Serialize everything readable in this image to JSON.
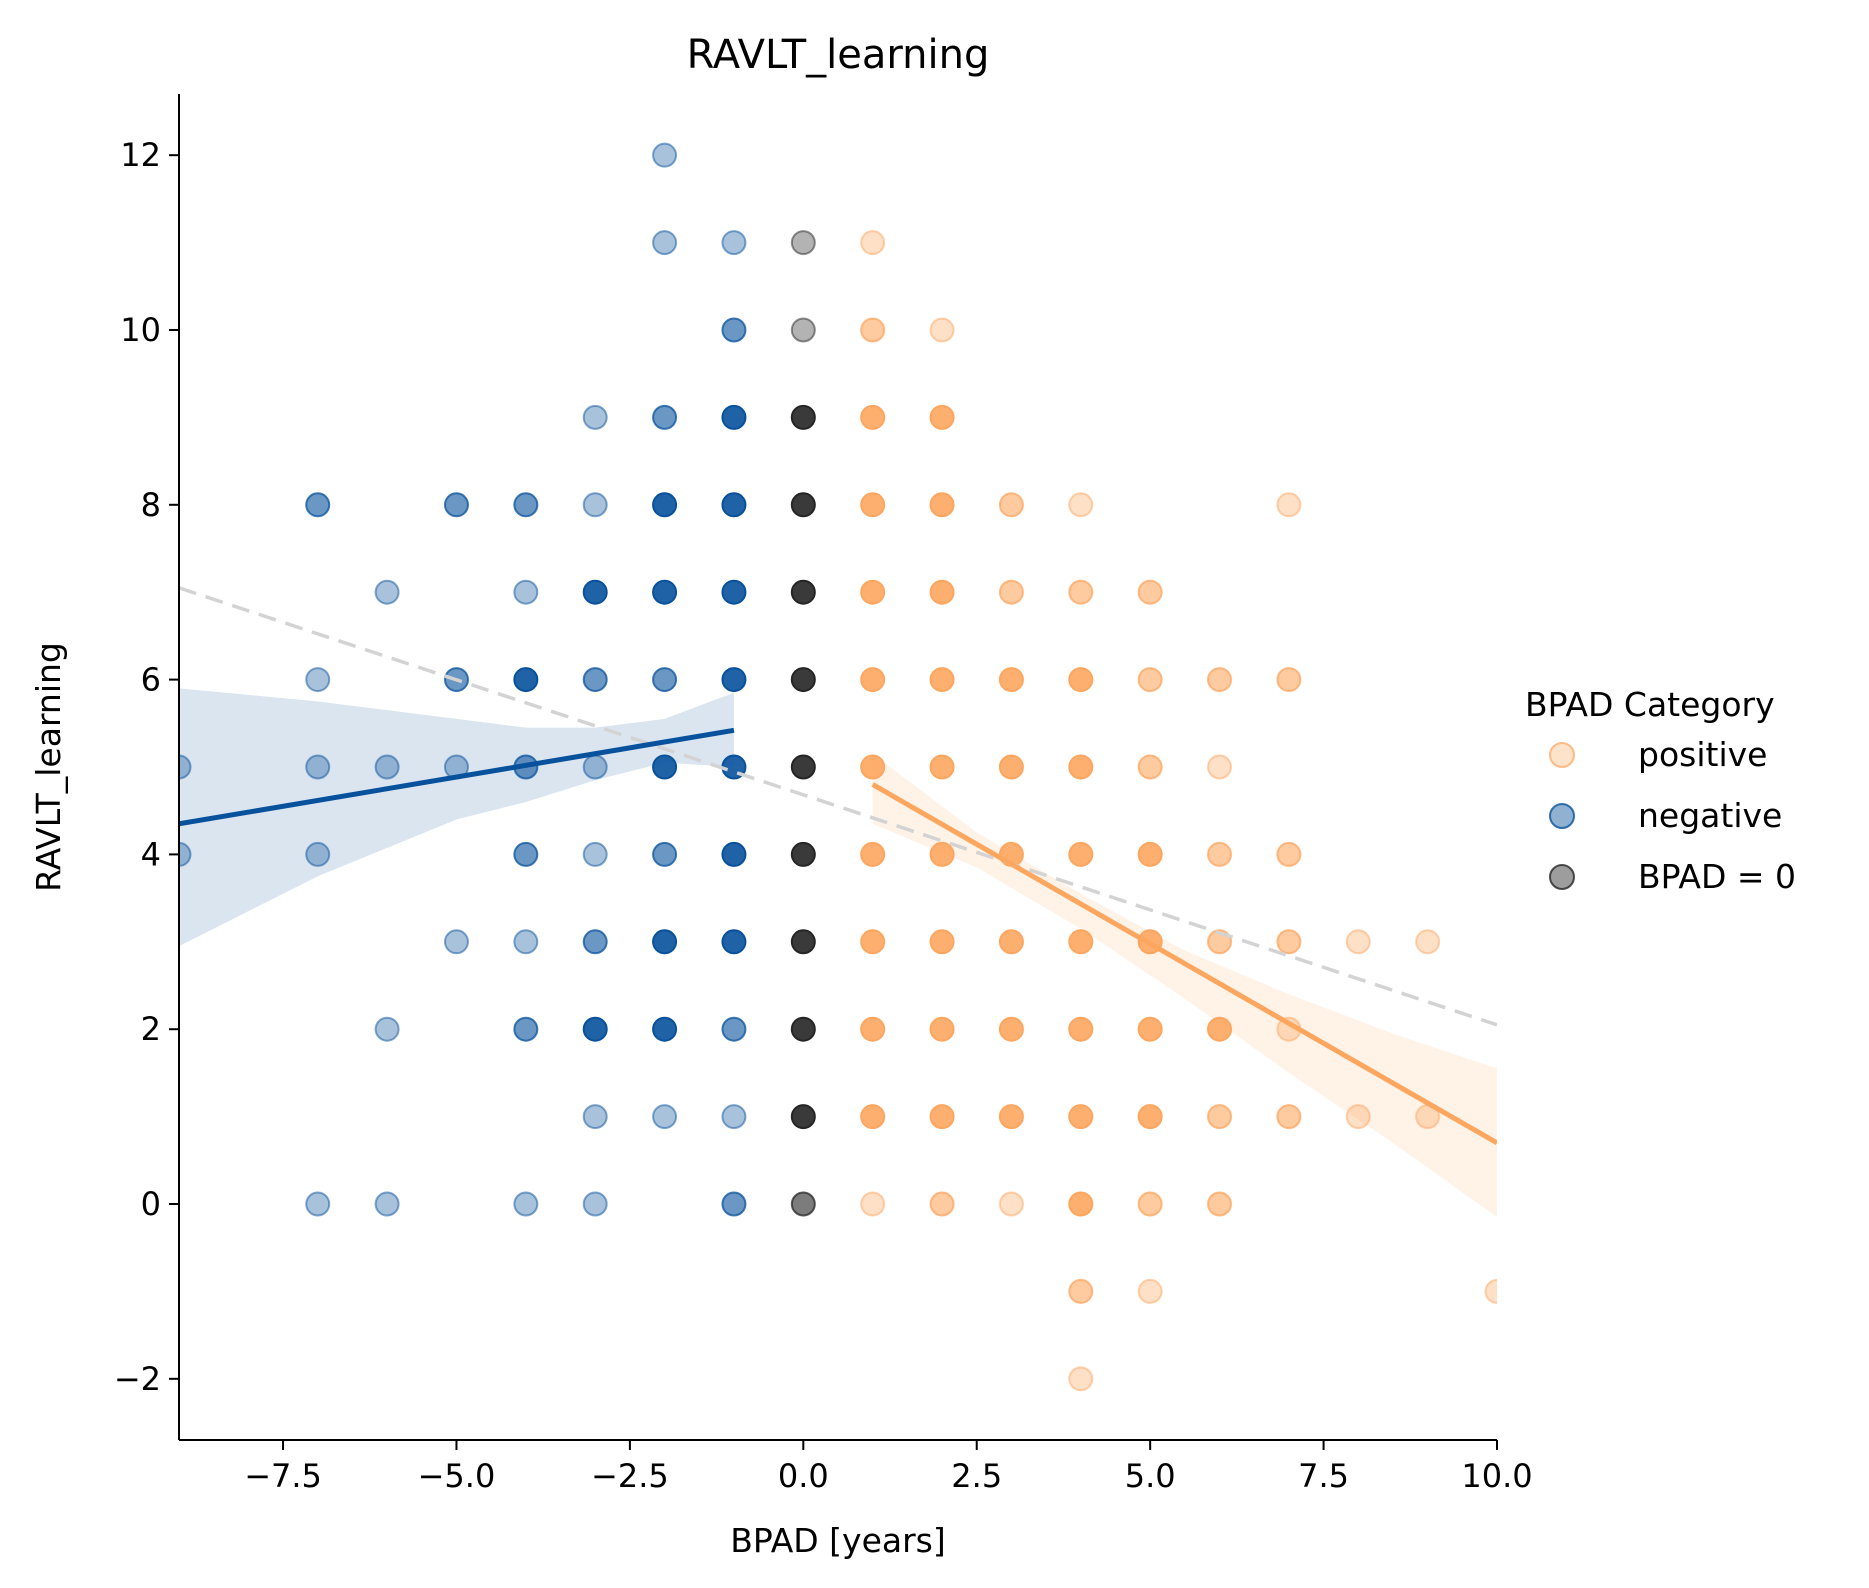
{
  "chart_data": {
    "type": "scatter",
    "title": "RAVLT_learning",
    "xlabel": "BPAD [years]",
    "ylabel": "RAVLT_learning",
    "xlim": [
      -9,
      10
    ],
    "ylim": [
      -2.7,
      12.7
    ],
    "xticks": [
      -7.5,
      -5.0,
      -2.5,
      0.0,
      2.5,
      5.0,
      7.5,
      10.0
    ],
    "xtick_labels": [
      "−7.5",
      "−5.0",
      "−2.5",
      "0.0",
      "2.5",
      "5.0",
      "7.5",
      "10.0"
    ],
    "yticks": [
      -2,
      0,
      2,
      4,
      6,
      8,
      10,
      12
    ],
    "ytick_labels": [
      "−2",
      "0",
      "2",
      "4",
      "6",
      "8",
      "10",
      "12"
    ],
    "legend": {
      "title": "BPAD Category",
      "position": "right",
      "entries": [
        {
          "label": "positive",
          "color": "#fdae6b"
        },
        {
          "label": "negative",
          "color": "#08519c"
        },
        {
          "label": "BPAD = 0",
          "color": "#252525"
        }
      ]
    },
    "series": [
      {
        "name": "positive",
        "color": "#fda65f",
        "points": [
          {
            "x": 1,
            "y": 11,
            "n": 1
          },
          {
            "x": 1,
            "y": 10,
            "n": 2
          },
          {
            "x": 1,
            "y": 9,
            "n": 3
          },
          {
            "x": 1,
            "y": 8,
            "n": 3
          },
          {
            "x": 1,
            "y": 7,
            "n": 3
          },
          {
            "x": 1,
            "y": 6,
            "n": 3
          },
          {
            "x": 1,
            "y": 5,
            "n": 3
          },
          {
            "x": 1,
            "y": 4,
            "n": 3
          },
          {
            "x": 1,
            "y": 3,
            "n": 3
          },
          {
            "x": 1,
            "y": 2,
            "n": 3
          },
          {
            "x": 1,
            "y": 1,
            "n": 3
          },
          {
            "x": 1,
            "y": 0,
            "n": 1
          },
          {
            "x": 2,
            "y": 10,
            "n": 1
          },
          {
            "x": 2,
            "y": 9,
            "n": 3
          },
          {
            "x": 2,
            "y": 8,
            "n": 3
          },
          {
            "x": 2,
            "y": 7,
            "n": 3
          },
          {
            "x": 2,
            "y": 6,
            "n": 3
          },
          {
            "x": 2,
            "y": 5,
            "n": 3
          },
          {
            "x": 2,
            "y": 4,
            "n": 3
          },
          {
            "x": 2,
            "y": 3,
            "n": 3
          },
          {
            "x": 2,
            "y": 2,
            "n": 3
          },
          {
            "x": 2,
            "y": 1,
            "n": 3
          },
          {
            "x": 2,
            "y": 0,
            "n": 2
          },
          {
            "x": 3,
            "y": 8,
            "n": 2
          },
          {
            "x": 3,
            "y": 7,
            "n": 2
          },
          {
            "x": 3,
            "y": 6,
            "n": 3
          },
          {
            "x": 3,
            "y": 5,
            "n": 3
          },
          {
            "x": 3,
            "y": 4,
            "n": 3
          },
          {
            "x": 3,
            "y": 3,
            "n": 3
          },
          {
            "x": 3,
            "y": 2,
            "n": 3
          },
          {
            "x": 3,
            "y": 1,
            "n": 3
          },
          {
            "x": 3,
            "y": 0,
            "n": 1
          },
          {
            "x": 4,
            "y": 8,
            "n": 1
          },
          {
            "x": 4,
            "y": 7,
            "n": 2
          },
          {
            "x": 4,
            "y": 6,
            "n": 3
          },
          {
            "x": 4,
            "y": 5,
            "n": 3
          },
          {
            "x": 4,
            "y": 4,
            "n": 3
          },
          {
            "x": 4,
            "y": 3,
            "n": 3
          },
          {
            "x": 4,
            "y": 2,
            "n": 3
          },
          {
            "x": 4,
            "y": 1,
            "n": 3
          },
          {
            "x": 4,
            "y": 0,
            "n": 3
          },
          {
            "x": 4,
            "y": -1,
            "n": 2
          },
          {
            "x": 4,
            "y": -2,
            "n": 1
          },
          {
            "x": 5,
            "y": 7,
            "n": 2
          },
          {
            "x": 5,
            "y": 6,
            "n": 2
          },
          {
            "x": 5,
            "y": 5,
            "n": 2
          },
          {
            "x": 5,
            "y": 4,
            "n": 3
          },
          {
            "x": 5,
            "y": 3,
            "n": 3
          },
          {
            "x": 5,
            "y": 2,
            "n": 3
          },
          {
            "x": 5,
            "y": 1,
            "n": 3
          },
          {
            "x": 5,
            "y": 0,
            "n": 2
          },
          {
            "x": 5,
            "y": -1,
            "n": 1
          },
          {
            "x": 6,
            "y": 6,
            "n": 2
          },
          {
            "x": 6,
            "y": 5,
            "n": 1
          },
          {
            "x": 6,
            "y": 4,
            "n": 2
          },
          {
            "x": 6,
            "y": 3,
            "n": 2
          },
          {
            "x": 6,
            "y": 2,
            "n": 3
          },
          {
            "x": 6,
            "y": 1,
            "n": 2
          },
          {
            "x": 6,
            "y": 0,
            "n": 2
          },
          {
            "x": 7,
            "y": 8,
            "n": 1
          },
          {
            "x": 7,
            "y": 6,
            "n": 2
          },
          {
            "x": 7,
            "y": 4,
            "n": 2
          },
          {
            "x": 7,
            "y": 3,
            "n": 2
          },
          {
            "x": 7,
            "y": 2,
            "n": 1
          },
          {
            "x": 7,
            "y": 1,
            "n": 2
          },
          {
            "x": 8,
            "y": 3,
            "n": 1
          },
          {
            "x": 8,
            "y": 1,
            "n": 1
          },
          {
            "x": 9,
            "y": 3,
            "n": 1
          },
          {
            "x": 9,
            "y": 1,
            "n": 1
          },
          {
            "x": 10,
            "y": -1,
            "n": 1
          }
        ],
        "fit": {
          "x0": 1,
          "y0": 4.8,
          "x1": 10,
          "y1": 0.7
        },
        "ci_band": [
          {
            "x": 1,
            "lo": 4.35,
            "hi": 5.15
          },
          {
            "x": 2.5,
            "lo": 3.85,
            "hi": 4.25
          },
          {
            "x": 4,
            "lo": 3.15,
            "hi": 3.55
          },
          {
            "x": 5.5,
            "lo": 2.35,
            "hi": 2.9
          },
          {
            "x": 7,
            "lo": 1.5,
            "hi": 2.4
          },
          {
            "x": 8.5,
            "lo": 0.7,
            "hi": 1.95
          },
          {
            "x": 10,
            "lo": -0.15,
            "hi": 1.55
          }
        ]
      },
      {
        "name": "negative",
        "color": "#08519c",
        "points": [
          {
            "x": -2,
            "y": 12,
            "n": 1
          },
          {
            "x": -2,
            "y": 11,
            "n": 1
          },
          {
            "x": -2,
            "y": 9,
            "n": 2
          },
          {
            "x": -2,
            "y": 8,
            "n": 3
          },
          {
            "x": -2,
            "y": 7,
            "n": 3
          },
          {
            "x": -2,
            "y": 6,
            "n": 2
          },
          {
            "x": -2,
            "y": 5,
            "n": 3
          },
          {
            "x": -2,
            "y": 4,
            "n": 2
          },
          {
            "x": -2,
            "y": 3,
            "n": 3
          },
          {
            "x": -2,
            "y": 2,
            "n": 3
          },
          {
            "x": -2,
            "y": 1,
            "n": 1
          },
          {
            "x": -1,
            "y": 11,
            "n": 1
          },
          {
            "x": -1,
            "y": 10,
            "n": 2
          },
          {
            "x": -1,
            "y": 9,
            "n": 3
          },
          {
            "x": -1,
            "y": 8,
            "n": 3
          },
          {
            "x": -1,
            "y": 7,
            "n": 3
          },
          {
            "x": -1,
            "y": 6,
            "n": 3
          },
          {
            "x": -1,
            "y": 5,
            "n": 3
          },
          {
            "x": -1,
            "y": 4,
            "n": 3
          },
          {
            "x": -1,
            "y": 3,
            "n": 3
          },
          {
            "x": -1,
            "y": 2,
            "n": 2
          },
          {
            "x": -1,
            "y": 1,
            "n": 1
          },
          {
            "x": -1,
            "y": 0,
            "n": 2
          },
          {
            "x": -3,
            "y": 9,
            "n": 1
          },
          {
            "x": -3,
            "y": 8,
            "n": 1
          },
          {
            "x": -3,
            "y": 7,
            "n": 3
          },
          {
            "x": -3,
            "y": 6,
            "n": 2
          },
          {
            "x": -3,
            "y": 5,
            "n": 1
          },
          {
            "x": -3,
            "y": 4,
            "n": 1
          },
          {
            "x": -3,
            "y": 3,
            "n": 2
          },
          {
            "x": -3,
            "y": 2,
            "n": 3
          },
          {
            "x": -3,
            "y": 1,
            "n": 1
          },
          {
            "x": -3,
            "y": 0,
            "n": 1
          },
          {
            "x": -4,
            "y": 8,
            "n": 2
          },
          {
            "x": -4,
            "y": 7,
            "n": 1
          },
          {
            "x": -4,
            "y": 6,
            "n": 3
          },
          {
            "x": -4,
            "y": 5,
            "n": 2
          },
          {
            "x": -4,
            "y": 4,
            "n": 2
          },
          {
            "x": -4,
            "y": 3,
            "n": 1
          },
          {
            "x": -4,
            "y": 2,
            "n": 2
          },
          {
            "x": -4,
            "y": 0,
            "n": 1
          },
          {
            "x": -5,
            "y": 8,
            "n": 2
          },
          {
            "x": -5,
            "y": 6,
            "n": 2
          },
          {
            "x": -5,
            "y": 5,
            "n": 1
          },
          {
            "x": -5,
            "y": 3,
            "n": 1
          },
          {
            "x": -6,
            "y": 7,
            "n": 1
          },
          {
            "x": -6,
            "y": 5,
            "n": 1
          },
          {
            "x": -6,
            "y": 2,
            "n": 1
          },
          {
            "x": -6,
            "y": 0,
            "n": 1
          },
          {
            "x": -7,
            "y": 8,
            "n": 2
          },
          {
            "x": -7,
            "y": 6,
            "n": 1
          },
          {
            "x": -7,
            "y": 5,
            "n": 1
          },
          {
            "x": -7,
            "y": 4,
            "n": 1
          },
          {
            "x": -7,
            "y": 0,
            "n": 1
          },
          {
            "x": -9,
            "y": 5,
            "n": 1
          },
          {
            "x": -9,
            "y": 4,
            "n": 1
          }
        ],
        "fit": {
          "x0": -9,
          "y0": 4.35,
          "x1": -1,
          "y1": 5.42
        },
        "ci_band": [
          {
            "x": -9,
            "lo": 2.95,
            "hi": 5.9
          },
          {
            "x": -7,
            "lo": 3.75,
            "hi": 5.75
          },
          {
            "x": -5,
            "lo": 4.4,
            "hi": 5.55
          },
          {
            "x": -4,
            "lo": 4.6,
            "hi": 5.45
          },
          {
            "x": -3,
            "lo": 4.85,
            "hi": 5.45
          },
          {
            "x": -2,
            "lo": 5.05,
            "hi": 5.55
          },
          {
            "x": -1,
            "lo": 5.0,
            "hi": 5.85
          }
        ]
      },
      {
        "name": "BPAD = 0",
        "color": "#252525",
        "points": [
          {
            "x": 0,
            "y": 11,
            "n": 1
          },
          {
            "x": 0,
            "y": 10,
            "n": 1
          },
          {
            "x": 0,
            "y": 9,
            "n": 3
          },
          {
            "x": 0,
            "y": 8,
            "n": 3
          },
          {
            "x": 0,
            "y": 7,
            "n": 3
          },
          {
            "x": 0,
            "y": 6,
            "n": 3
          },
          {
            "x": 0,
            "y": 5,
            "n": 3
          },
          {
            "x": 0,
            "y": 4,
            "n": 3
          },
          {
            "x": 0,
            "y": 3,
            "n": 3
          },
          {
            "x": 0,
            "y": 2,
            "n": 3
          },
          {
            "x": 0,
            "y": 1,
            "n": 3
          },
          {
            "x": 0,
            "y": 0,
            "n": 2
          }
        ]
      }
    ],
    "overall_fit": {
      "x0": -9,
      "y0": 7.05,
      "x1": 10,
      "y1": 2.05,
      "color": "#d3d3d3"
    }
  }
}
